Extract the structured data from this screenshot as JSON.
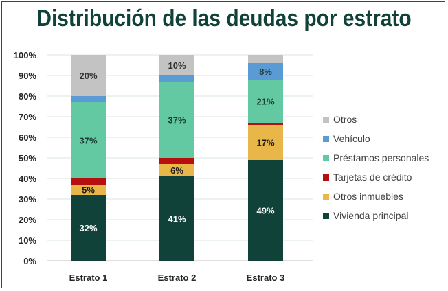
{
  "chart_data": {
    "type": "bar",
    "stacked": true,
    "title": "Distribución de las deudas por estrato",
    "categories": [
      "Estrato 1",
      "Estrato 2",
      "Estrato 3"
    ],
    "ylim": [
      0,
      100
    ],
    "yticks": [
      "0%",
      "10%",
      "20%",
      "30%",
      "40%",
      "50%",
      "60%",
      "70%",
      "80%",
      "90%",
      "100%"
    ],
    "series": [
      {
        "name": "Vivienda principal",
        "color": "#114239",
        "values": [
          32,
          41,
          49
        ],
        "labels": [
          "32%",
          "41%",
          "49%"
        ],
        "label_color": "#ffffff"
      },
      {
        "name": "Otros inmuebles",
        "color": "#e9b64a",
        "values": [
          5,
          6,
          17
        ],
        "labels": [
          "5%",
          "6%",
          "17%"
        ],
        "label_color": "#1b1b1b"
      },
      {
        "name": "Tarjetas de crédito",
        "color": "#b50f0f",
        "values": [
          3,
          3,
          1
        ],
        "labels": [
          "",
          "",
          ""
        ],
        "label_color": "#1b1b1b"
      },
      {
        "name": "Préstamos personales",
        "color": "#63c9a3",
        "values": [
          37,
          37,
          21
        ],
        "labels": [
          "37%",
          "37%",
          "21%"
        ],
        "label_color": "#1b3d34"
      },
      {
        "name": "Vehículo",
        "color": "#5b9bd5",
        "values": [
          3,
          3,
          8
        ],
        "labels": [
          "",
          "",
          "8%"
        ],
        "label_color": "#1b3d34"
      },
      {
        "name": "Otros",
        "color": "#c3c3c3",
        "values": [
          20,
          10,
          4
        ],
        "labels": [
          "20%",
          "10%",
          ""
        ],
        "label_color": "#333333"
      }
    ],
    "legend_order": [
      "Otros",
      "Vehículo",
      "Préstamos personales",
      "Tarjetas de crédito",
      "Otros inmuebles",
      "Vivienda principal"
    ],
    "legend_position": "right",
    "grid": true
  }
}
